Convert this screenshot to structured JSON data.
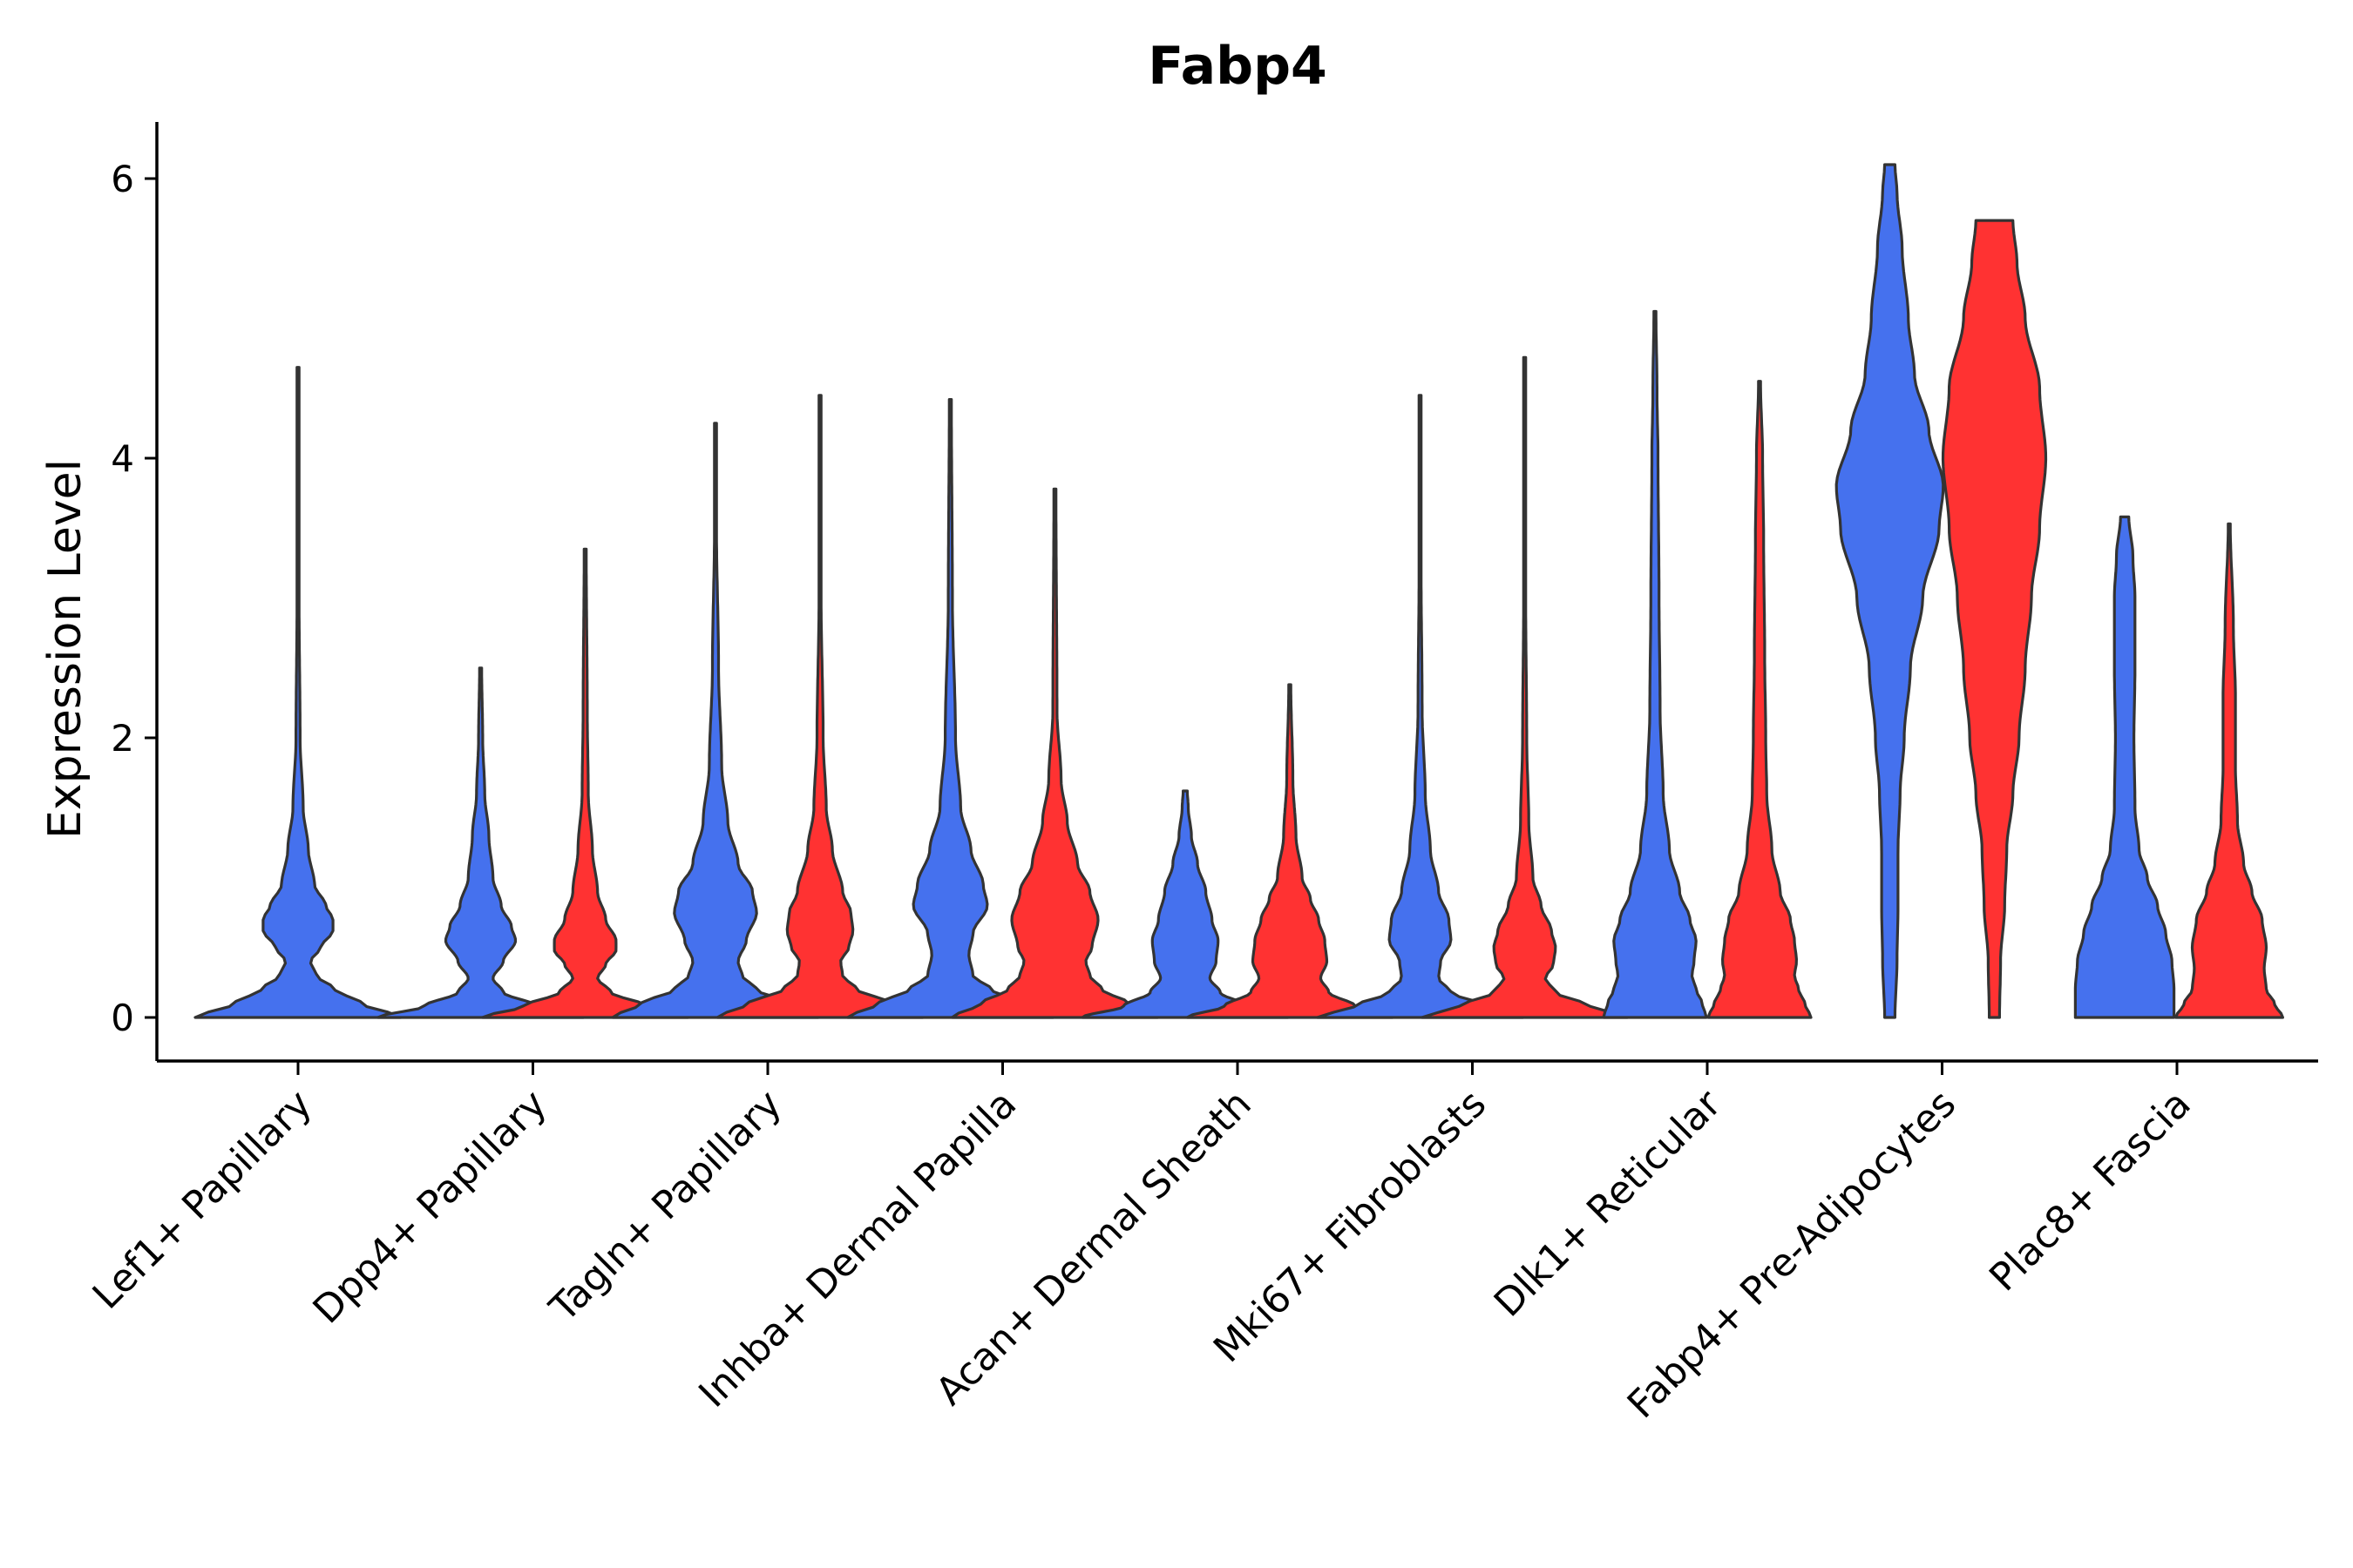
{
  "chart_data": {
    "type": "violin",
    "title": "Fabp4",
    "ylabel": "Expression Level",
    "xlabel": "",
    "ylim": [
      -0.3,
      6.4
    ],
    "yticks": [
      0,
      2,
      4,
      6
    ],
    "grid": false,
    "legend": "none",
    "series_colors": [
      "#4571EE",
      "#FF3232"
    ],
    "categories": [
      "Lef1+ Papillary",
      "Dpp4+ Papillary",
      "Tagln+ Papillary",
      "Inhba+ Dermal Papilla",
      "Acan+ Dermal Sheath",
      "Mki67+ Fibroblasts",
      "Dlk1+ Reticular",
      "Fabp4+ Pre-Adipocytes",
      "Plac8+ Fascia"
    ],
    "groups": [
      {
        "category_index": 0,
        "series": 0,
        "max": 4.65,
        "profile": [
          [
            0,
            1.0
          ],
          [
            0.1,
            0.62
          ],
          [
            0.2,
            0.36
          ],
          [
            0.3,
            0.18
          ],
          [
            0.4,
            0.12
          ],
          [
            0.5,
            0.22
          ],
          [
            0.62,
            0.34
          ],
          [
            0.7,
            0.34
          ],
          [
            0.8,
            0.27
          ],
          [
            0.95,
            0.16
          ],
          [
            1.2,
            0.1
          ],
          [
            1.5,
            0.05
          ],
          [
            2.0,
            0.02
          ],
          [
            3.0,
            0.01
          ],
          [
            4.65,
            0.01
          ]
        ]
      },
      {
        "category_index": 1,
        "series": 0,
        "max": 2.5,
        "profile": [
          [
            0,
            1.0
          ],
          [
            0.08,
            0.55
          ],
          [
            0.18,
            0.22
          ],
          [
            0.28,
            0.12
          ],
          [
            0.4,
            0.22
          ],
          [
            0.55,
            0.34
          ],
          [
            0.65,
            0.3
          ],
          [
            0.8,
            0.2
          ],
          [
            1.0,
            0.12
          ],
          [
            1.3,
            0.08
          ],
          [
            1.6,
            0.04
          ],
          [
            2.0,
            0.02
          ],
          [
            2.5,
            0.01
          ]
        ]
      },
      {
        "category_index": 1,
        "series": 1,
        "max": 3.35,
        "profile": [
          [
            0,
            1.0
          ],
          [
            0.08,
            0.6
          ],
          [
            0.18,
            0.25
          ],
          [
            0.28,
            0.12
          ],
          [
            0.38,
            0.2
          ],
          [
            0.48,
            0.3
          ],
          [
            0.55,
            0.3
          ],
          [
            0.7,
            0.2
          ],
          [
            0.9,
            0.12
          ],
          [
            1.2,
            0.07
          ],
          [
            1.6,
            0.03
          ],
          [
            2.2,
            0.02
          ],
          [
            3.35,
            0.01
          ]
        ]
      },
      {
        "category_index": 2,
        "series": 0,
        "max": 4.25,
        "profile": [
          [
            0,
            1.0
          ],
          [
            0.1,
            0.72
          ],
          [
            0.2,
            0.4
          ],
          [
            0.3,
            0.26
          ],
          [
            0.4,
            0.22
          ],
          [
            0.55,
            0.3
          ],
          [
            0.75,
            0.4
          ],
          [
            0.9,
            0.36
          ],
          [
            1.1,
            0.22
          ],
          [
            1.4,
            0.12
          ],
          [
            1.8,
            0.06
          ],
          [
            2.5,
            0.03
          ],
          [
            3.5,
            0.01
          ],
          [
            4.25,
            0.01
          ]
        ]
      },
      {
        "category_index": 2,
        "series": 1,
        "max": 4.45,
        "profile": [
          [
            0,
            1.0
          ],
          [
            0.1,
            0.7
          ],
          [
            0.2,
            0.36
          ],
          [
            0.3,
            0.22
          ],
          [
            0.4,
            0.2
          ],
          [
            0.5,
            0.28
          ],
          [
            0.62,
            0.32
          ],
          [
            0.75,
            0.3
          ],
          [
            0.9,
            0.22
          ],
          [
            1.2,
            0.12
          ],
          [
            1.5,
            0.06
          ],
          [
            2.0,
            0.03
          ],
          [
            3.0,
            0.01
          ],
          [
            4.45,
            0.01
          ]
        ]
      },
      {
        "category_index": 3,
        "series": 0,
        "max": 4.42,
        "profile": [
          [
            0,
            1.0
          ],
          [
            0.1,
            0.7
          ],
          [
            0.2,
            0.4
          ],
          [
            0.3,
            0.22
          ],
          [
            0.45,
            0.18
          ],
          [
            0.6,
            0.22
          ],
          [
            0.8,
            0.36
          ],
          [
            0.95,
            0.32
          ],
          [
            1.2,
            0.2
          ],
          [
            1.5,
            0.1
          ],
          [
            2.0,
            0.05
          ],
          [
            3.0,
            0.02
          ],
          [
            4.42,
            0.01
          ]
        ]
      },
      {
        "category_index": 3,
        "series": 1,
        "max": 3.78,
        "profile": [
          [
            0,
            1.0
          ],
          [
            0.1,
            0.72
          ],
          [
            0.2,
            0.46
          ],
          [
            0.3,
            0.34
          ],
          [
            0.4,
            0.3
          ],
          [
            0.5,
            0.36
          ],
          [
            0.7,
            0.42
          ],
          [
            0.9,
            0.34
          ],
          [
            1.1,
            0.22
          ],
          [
            1.4,
            0.12
          ],
          [
            1.7,
            0.06
          ],
          [
            2.2,
            0.02
          ],
          [
            3.78,
            0.01
          ]
        ]
      },
      {
        "category_index": 4,
        "series": 0,
        "max": 1.62,
        "profile": [
          [
            0,
            1.0
          ],
          [
            0.08,
            0.6
          ],
          [
            0.18,
            0.34
          ],
          [
            0.28,
            0.24
          ],
          [
            0.4,
            0.3
          ],
          [
            0.55,
            0.32
          ],
          [
            0.7,
            0.26
          ],
          [
            0.9,
            0.2
          ],
          [
            1.1,
            0.12
          ],
          [
            1.3,
            0.06
          ],
          [
            1.5,
            0.03
          ],
          [
            1.62,
            0.02
          ]
        ]
      },
      {
        "category_index": 4,
        "series": 1,
        "max": 2.38,
        "profile": [
          [
            0,
            1.0
          ],
          [
            0.08,
            0.64
          ],
          [
            0.18,
            0.38
          ],
          [
            0.28,
            0.3
          ],
          [
            0.4,
            0.36
          ],
          [
            0.55,
            0.34
          ],
          [
            0.7,
            0.28
          ],
          [
            0.85,
            0.2
          ],
          [
            1.0,
            0.12
          ],
          [
            1.3,
            0.06
          ],
          [
            1.7,
            0.03
          ],
          [
            2.38,
            0.01
          ]
        ]
      },
      {
        "category_index": 5,
        "series": 0,
        "max": 4.45,
        "profile": [
          [
            0,
            1.0
          ],
          [
            0.08,
            0.64
          ],
          [
            0.18,
            0.3
          ],
          [
            0.28,
            0.18
          ],
          [
            0.4,
            0.2
          ],
          [
            0.55,
            0.3
          ],
          [
            0.7,
            0.28
          ],
          [
            0.9,
            0.18
          ],
          [
            1.2,
            0.1
          ],
          [
            1.6,
            0.05
          ],
          [
            2.2,
            0.02
          ],
          [
            3.2,
            0.01
          ],
          [
            4.45,
            0.01
          ]
        ]
      },
      {
        "category_index": 5,
        "series": 1,
        "max": 4.72,
        "profile": [
          [
            0,
            1.0
          ],
          [
            0.08,
            0.64
          ],
          [
            0.18,
            0.3
          ],
          [
            0.28,
            0.2
          ],
          [
            0.38,
            0.28
          ],
          [
            0.5,
            0.3
          ],
          [
            0.62,
            0.26
          ],
          [
            0.8,
            0.16
          ],
          [
            1.0,
            0.08
          ],
          [
            1.4,
            0.04
          ],
          [
            2.0,
            0.02
          ],
          [
            3.0,
            0.01
          ],
          [
            4.72,
            0.01
          ]
        ]
      },
      {
        "category_index": 6,
        "series": 0,
        "max": 5.05,
        "profile": [
          [
            0,
            0.5
          ],
          [
            0.1,
            0.46
          ],
          [
            0.2,
            0.4
          ],
          [
            0.3,
            0.36
          ],
          [
            0.4,
            0.38
          ],
          [
            0.55,
            0.4
          ],
          [
            0.7,
            0.34
          ],
          [
            0.9,
            0.24
          ],
          [
            1.2,
            0.14
          ],
          [
            1.6,
            0.08
          ],
          [
            2.2,
            0.05
          ],
          [
            3.0,
            0.04
          ],
          [
            4.0,
            0.03
          ],
          [
            4.5,
            0.02
          ],
          [
            5.05,
            0.01
          ]
        ]
      },
      {
        "category_index": 6,
        "series": 1,
        "max": 4.55,
        "profile": [
          [
            0,
            0.5
          ],
          [
            0.1,
            0.44
          ],
          [
            0.2,
            0.38
          ],
          [
            0.3,
            0.34
          ],
          [
            0.4,
            0.36
          ],
          [
            0.55,
            0.34
          ],
          [
            0.7,
            0.3
          ],
          [
            0.9,
            0.2
          ],
          [
            1.2,
            0.12
          ],
          [
            1.6,
            0.07
          ],
          [
            2.0,
            0.06
          ],
          [
            2.6,
            0.05
          ],
          [
            3.4,
            0.04
          ],
          [
            4.0,
            0.03
          ],
          [
            4.55,
            0.01
          ]
        ]
      },
      {
        "category_index": 7,
        "series": 0,
        "max": 6.1,
        "profile": [
          [
            0,
            0.05
          ],
          [
            0.4,
            0.07
          ],
          [
            0.8,
            0.08
          ],
          [
            1.2,
            0.08
          ],
          [
            1.6,
            0.1
          ],
          [
            2.0,
            0.14
          ],
          [
            2.5,
            0.2
          ],
          [
            3.0,
            0.32
          ],
          [
            3.5,
            0.48
          ],
          [
            3.8,
            0.52
          ],
          [
            4.2,
            0.38
          ],
          [
            4.6,
            0.24
          ],
          [
            5.0,
            0.18
          ],
          [
            5.5,
            0.12
          ],
          [
            5.9,
            0.07
          ],
          [
            6.1,
            0.05
          ]
        ]
      },
      {
        "category_index": 7,
        "series": 1,
        "max": 5.7,
        "profile": [
          [
            0,
            0.05
          ],
          [
            0.4,
            0.06
          ],
          [
            0.8,
            0.1
          ],
          [
            1.2,
            0.12
          ],
          [
            1.6,
            0.18
          ],
          [
            2.0,
            0.24
          ],
          [
            2.5,
            0.3
          ],
          [
            3.0,
            0.36
          ],
          [
            3.5,
            0.44
          ],
          [
            4.0,
            0.5
          ],
          [
            4.5,
            0.44
          ],
          [
            5.0,
            0.3
          ],
          [
            5.4,
            0.22
          ],
          [
            5.7,
            0.18
          ]
        ]
      },
      {
        "category_index": 8,
        "series": 0,
        "max": 3.58,
        "profile": [
          [
            0,
            0.48
          ],
          [
            0.2,
            0.48
          ],
          [
            0.4,
            0.46
          ],
          [
            0.6,
            0.4
          ],
          [
            0.8,
            0.32
          ],
          [
            1.0,
            0.22
          ],
          [
            1.2,
            0.14
          ],
          [
            1.5,
            0.1
          ],
          [
            2.0,
            0.09
          ],
          [
            2.5,
            0.1
          ],
          [
            3.0,
            0.1
          ],
          [
            3.3,
            0.08
          ],
          [
            3.58,
            0.04
          ]
        ]
      },
      {
        "category_index": 8,
        "series": 1,
        "max": 3.53,
        "profile": [
          [
            0,
            0.52
          ],
          [
            0.1,
            0.44
          ],
          [
            0.2,
            0.36
          ],
          [
            0.35,
            0.34
          ],
          [
            0.5,
            0.36
          ],
          [
            0.7,
            0.32
          ],
          [
            0.9,
            0.22
          ],
          [
            1.1,
            0.14
          ],
          [
            1.4,
            0.08
          ],
          [
            1.8,
            0.06
          ],
          [
            2.3,
            0.06
          ],
          [
            2.8,
            0.04
          ],
          [
            3.53,
            0.01
          ]
        ]
      }
    ]
  }
}
